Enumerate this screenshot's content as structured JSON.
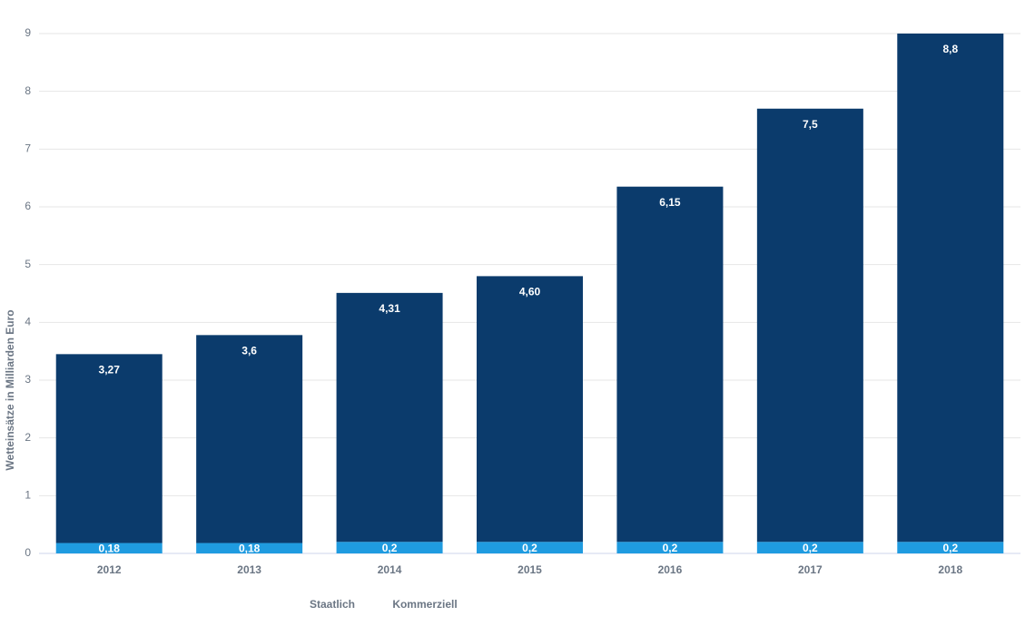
{
  "chart_data": {
    "type": "bar",
    "stacked": true,
    "y_label": "Wetteinsätze in Milliarden Euro",
    "categories": [
      "2012",
      "2013",
      "2014",
      "2015",
      "2016",
      "2017",
      "2018"
    ],
    "series": [
      {
        "name": "Staatlich",
        "color": "#1f9be0",
        "values": [
          0.18,
          0.18,
          0.2,
          0.2,
          0.2,
          0.2,
          0.2
        ],
        "value_labels": [
          "0,18",
          "0,18",
          "0,2",
          "0,2",
          "0,2",
          "0,2",
          "0,2"
        ]
      },
      {
        "name": "Kommerziell",
        "color": "#0b3b6c",
        "values": [
          3.27,
          3.6,
          4.31,
          4.6,
          6.15,
          7.5,
          8.8
        ],
        "value_labels": [
          "3,27",
          "3,6",
          "4,31",
          "4,60",
          "6,15",
          "7,5",
          "8,8"
        ]
      }
    ],
    "ylim": [
      0,
      9
    ],
    "yticks": [
      0,
      1,
      2,
      3,
      4,
      5,
      6,
      7,
      8,
      9
    ],
    "grid": true
  }
}
